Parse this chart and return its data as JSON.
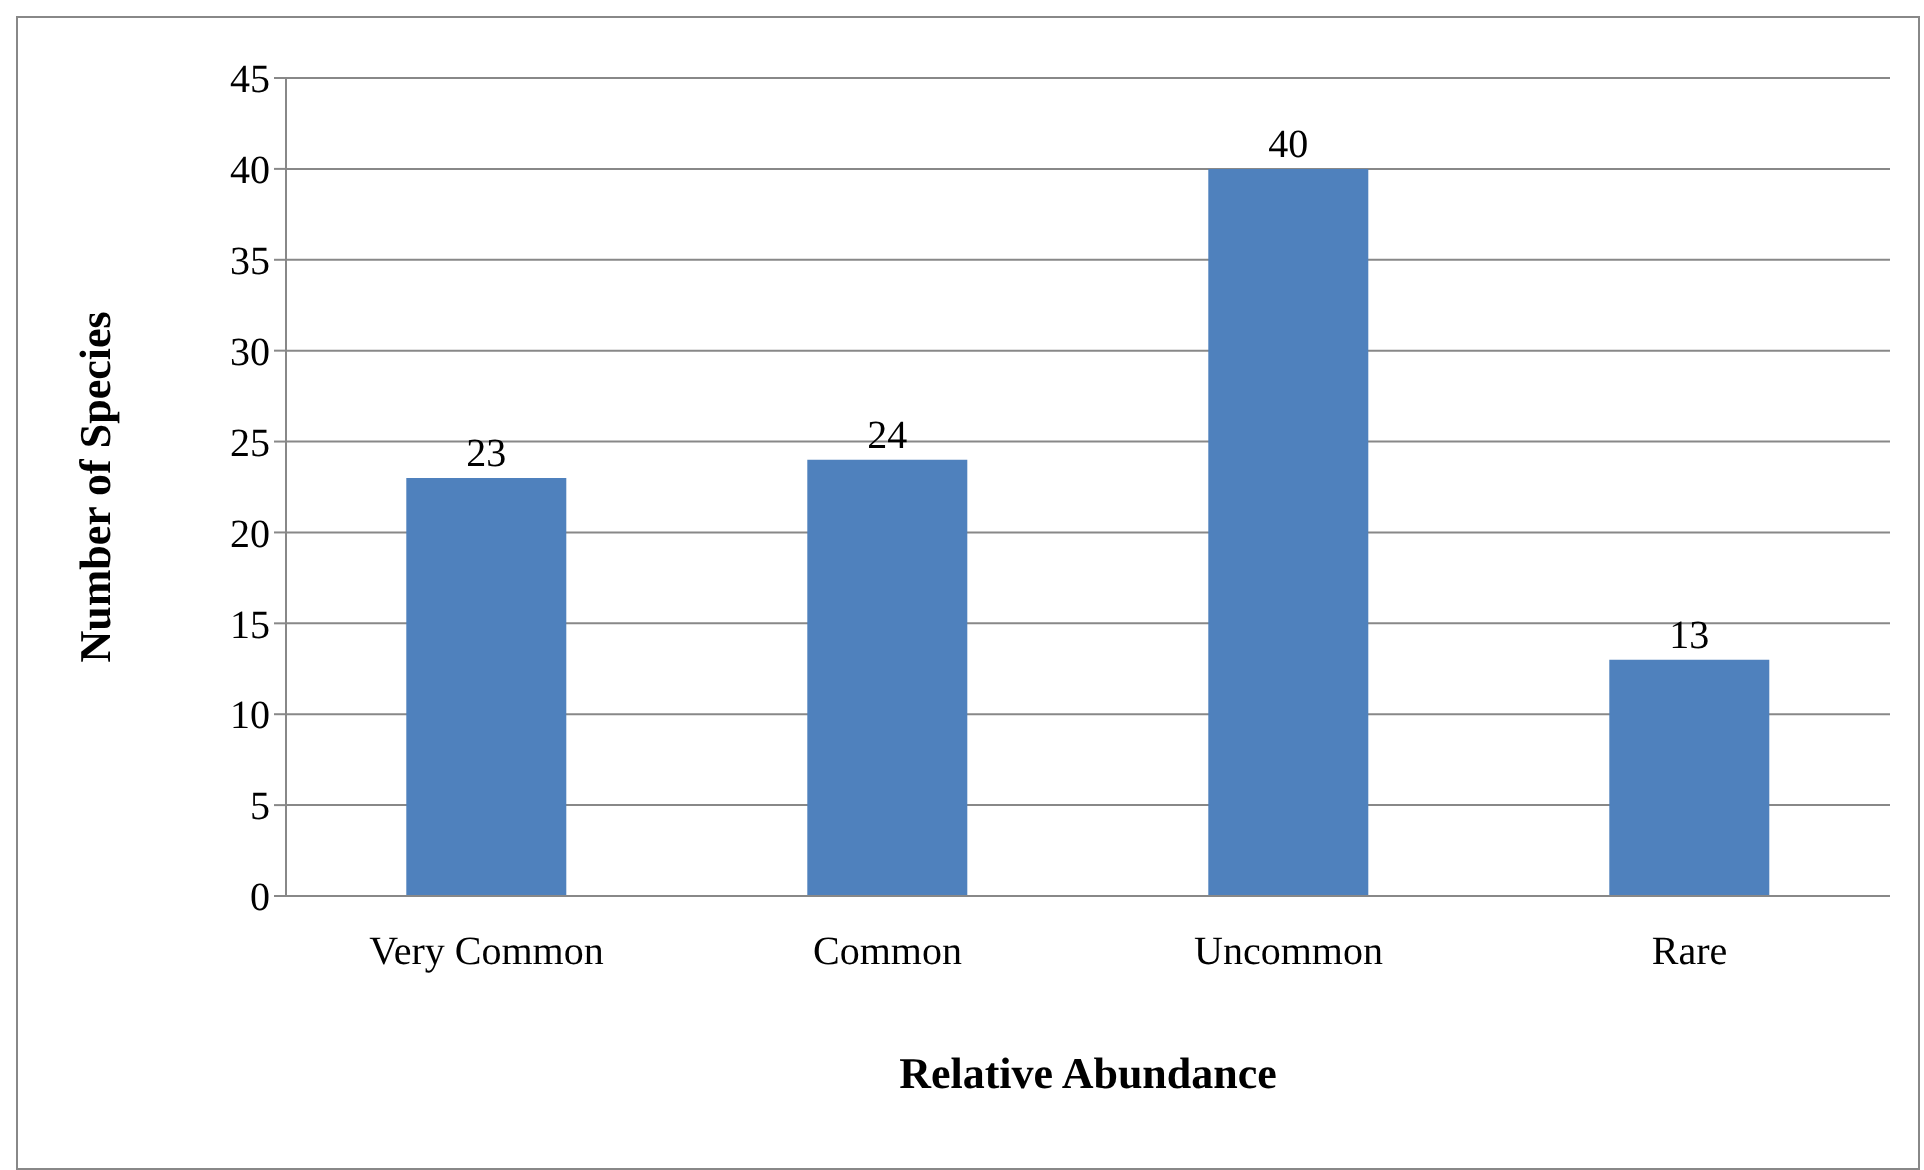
{
  "chart_data": {
    "type": "bar",
    "xlabel": "Relative Abundance",
    "ylabel": "Number of Species",
    "categories": [
      "Very Common",
      "Common",
      "Uncommon",
      "Rare"
    ],
    "values": [
      23,
      24,
      40,
      13
    ],
    "color": "#4f81bd",
    "data_labels": true,
    "ylim": [
      0,
      45
    ],
    "yticks": [
      0,
      5,
      10,
      15,
      20,
      25,
      30,
      35,
      40,
      45
    ],
    "grid": "y"
  }
}
